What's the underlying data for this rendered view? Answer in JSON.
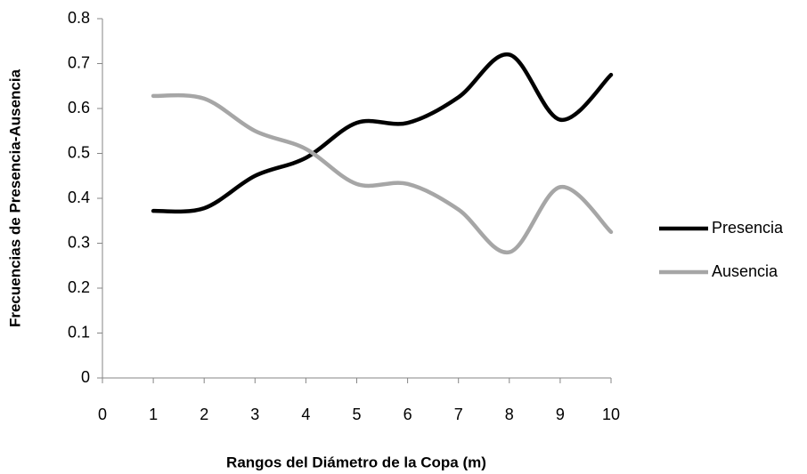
{
  "chart_data": {
    "type": "line",
    "smooth": true,
    "legend": "right",
    "grid": false,
    "xlabel": "Rangos del Diámetro de la Copa (m)",
    "ylabel": "Frecuencias de Presencia-Ausencia",
    "x": [
      1,
      2,
      3,
      4,
      5,
      6,
      7,
      8,
      9,
      10
    ],
    "series": [
      {
        "name": "Presencia",
        "color": "#000000",
        "values": [
          0.372,
          0.378,
          0.45,
          0.49,
          0.568,
          0.568,
          0.625,
          0.72,
          0.575,
          0.675
        ]
      },
      {
        "name": "Ausencia",
        "color": "#a6a6a6",
        "values": [
          0.628,
          0.622,
          0.55,
          0.51,
          0.432,
          0.432,
          0.375,
          0.28,
          0.425,
          0.325
        ]
      }
    ],
    "xlim": [
      0,
      10
    ],
    "xticks": [
      0,
      1,
      2,
      3,
      4,
      5,
      6,
      7,
      8,
      9,
      10
    ],
    "ylim": [
      0,
      0.8
    ],
    "yticks": [
      0,
      0.1,
      0.2,
      0.3,
      0.4,
      0.5,
      0.6,
      0.7,
      0.8
    ]
  }
}
